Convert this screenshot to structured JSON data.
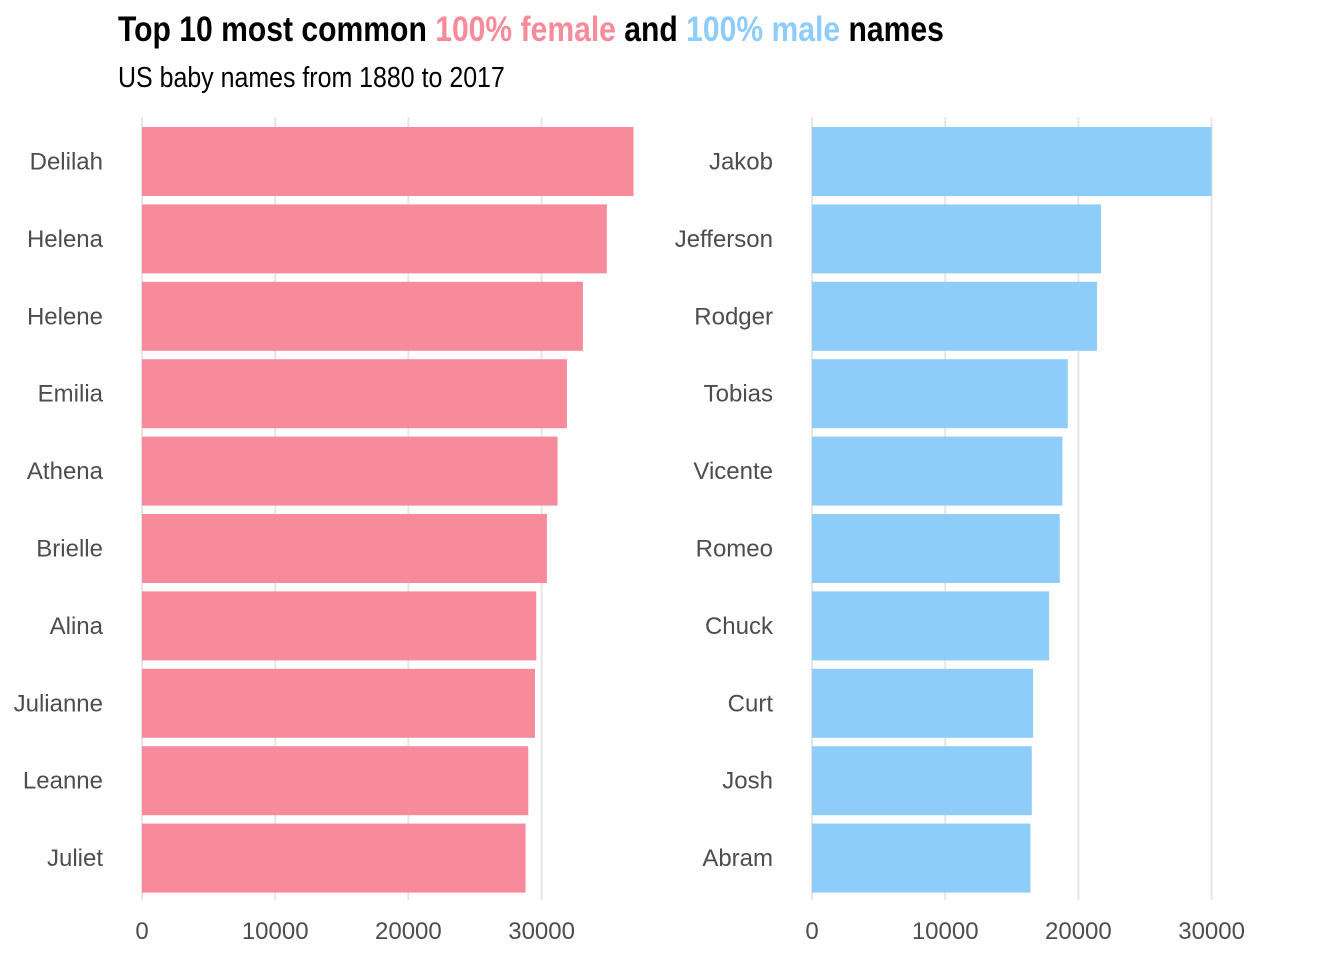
{
  "title": {
    "part1": "Top 10 most common ",
    "female_text": "100% female",
    "part2": " and ",
    "male_text": "100% male",
    "part3": " names"
  },
  "subtitle": "US baby names from 1880 to 2017",
  "colors": {
    "female": "#f78b9c",
    "male": "#8ecdfa",
    "grid": "#e6e6e6",
    "text": "#4d4d4d"
  },
  "chart_data": [
    {
      "type": "bar",
      "orientation": "horizontal",
      "panel": "female",
      "categories": [
        "Delilah",
        "Helena",
        "Helene",
        "Emilia",
        "Athena",
        "Brielle",
        "Alina",
        "Julianne",
        "Leanne",
        "Juliet"
      ],
      "values": [
        36900,
        34900,
        33100,
        31900,
        31200,
        30400,
        29600,
        29500,
        29000,
        28800
      ],
      "xticks": [
        0,
        10000,
        20000,
        30000
      ],
      "xlim": [
        0,
        38000
      ],
      "grid": true
    },
    {
      "type": "bar",
      "orientation": "horizontal",
      "panel": "male",
      "categories": [
        "Jakob",
        "Jefferson",
        "Rodger",
        "Tobias",
        "Vicente",
        "Romeo",
        "Chuck",
        "Curt",
        "Josh",
        "Abram"
      ],
      "values": [
        30000,
        21700,
        21400,
        19200,
        18800,
        18600,
        17800,
        16600,
        16500,
        16400
      ],
      "xticks": [
        0,
        10000,
        20000,
        30000
      ],
      "xlim": [
        0,
        32500
      ],
      "grid": true
    }
  ]
}
